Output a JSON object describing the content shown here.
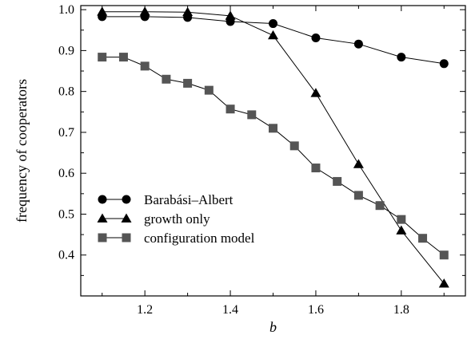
{
  "chart_data": {
    "type": "line",
    "xlabel": "b",
    "ylabel": "frequency of cooperators",
    "xlim": [
      1.05,
      1.95
    ],
    "ylim": [
      0.3,
      1.01
    ],
    "xticks": [
      1.2,
      1.4,
      1.6,
      1.8
    ],
    "xtick_labels": [
      "1.2",
      "1.4",
      "1.6",
      "1.8"
    ],
    "yticks": [
      0.4,
      0.5,
      0.6,
      0.7,
      0.8,
      0.9,
      1.0
    ],
    "ytick_labels": [
      "0.4",
      "0.5",
      "0.6",
      "0.7",
      "0.8",
      "0.9",
      "1.0"
    ],
    "legend_position": "lower-left",
    "series": [
      {
        "name": "Barabási–Albert",
        "marker": "circle",
        "color": "#000000",
        "x": [
          1.1,
          1.2,
          1.3,
          1.4,
          1.5,
          1.6,
          1.7,
          1.8,
          1.9
        ],
        "y": [
          0.983,
          0.983,
          0.981,
          0.971,
          0.966,
          0.931,
          0.916,
          0.884,
          0.868
        ]
      },
      {
        "name": "growth only",
        "marker": "triangle",
        "color": "#000000",
        "x": [
          1.1,
          1.2,
          1.3,
          1.4,
          1.5,
          1.6,
          1.7,
          1.8,
          1.9
        ],
        "y": [
          0.995,
          0.995,
          0.994,
          0.985,
          0.937,
          0.796,
          0.622,
          0.46,
          0.33
        ]
      },
      {
        "name": "configuration model",
        "marker": "square",
        "color": "#555555",
        "x": [
          1.1,
          1.15,
          1.2,
          1.25,
          1.3,
          1.35,
          1.4,
          1.45,
          1.5,
          1.55,
          1.6,
          1.65,
          1.7,
          1.75,
          1.8,
          1.85,
          1.9
        ],
        "y": [
          0.884,
          0.884,
          0.862,
          0.83,
          0.82,
          0.803,
          0.757,
          0.743,
          0.71,
          0.667,
          0.613,
          0.58,
          0.546,
          0.521,
          0.487,
          0.441,
          0.4
        ]
      }
    ]
  }
}
